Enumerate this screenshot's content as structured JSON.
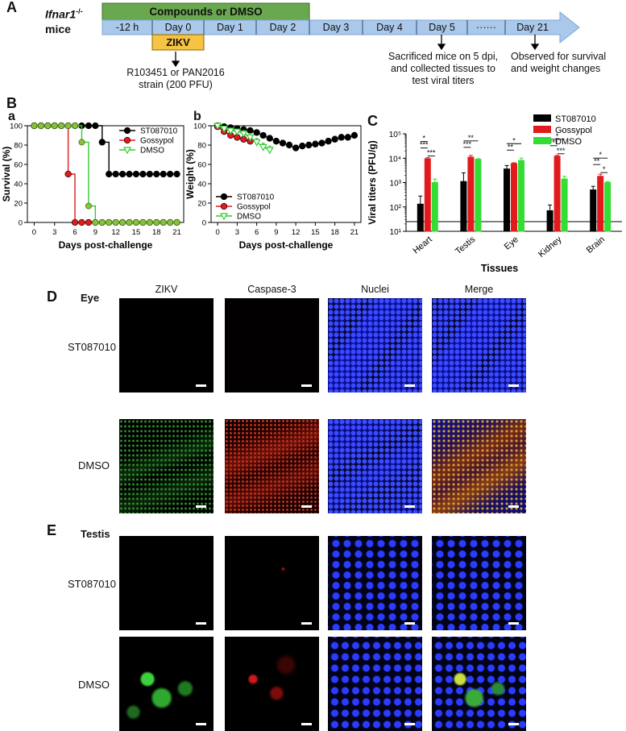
{
  "panelA": {
    "label": "A",
    "mice_title": "Ifnar1",
    "mice_sup": "-/-",
    "mice_word": "mice",
    "bar_compounds": "Compounds or DMSO",
    "bar_zikv": "ZIKV",
    "timeline": [
      "-12 h",
      "Day 0",
      "Day 1",
      "Day 2",
      "Day 3",
      "Day 4",
      "Day 5",
      "······",
      "Day 21"
    ],
    "strain_note_1": "R103451 or PAN2016",
    "strain_note_2": "strain (200 PFU)",
    "sacrifice_note_1": "Sacrificed mice on 5 dpi,",
    "sacrifice_note_2": "and collected tissues to",
    "sacrifice_note_3": "test viral titers",
    "observe_note_1": "Observed for survival",
    "observe_note_2": "and weight changes",
    "colors": {
      "compounds": "#6aa84f",
      "zikv": "#f6c342",
      "timeline": "#a9c8ea",
      "arrow": "#a9c8ea"
    }
  },
  "panelB": {
    "label": "B",
    "sub_a": "a",
    "sub_b": "b"
  },
  "panelC": {
    "label": "C"
  },
  "chart_data": [
    {
      "type": "line",
      "id": "survival",
      "xlabel": "Days post-challenge",
      "ylabel": "Survival (%)",
      "xlim": [
        -1,
        22
      ],
      "ylim": [
        0,
        100
      ],
      "xticks": [
        0,
        3,
        6,
        9,
        12,
        15,
        18,
        21
      ],
      "yticks": [
        0,
        20,
        40,
        60,
        80,
        100
      ],
      "legend_position": "top-right",
      "series": [
        {
          "name": "ST087010",
          "color": "#000000",
          "marker": "circle",
          "x": [
            0,
            1,
            2,
            3,
            4,
            5,
            6,
            7,
            8,
            9,
            10,
            11,
            12,
            13,
            14,
            15,
            16,
            17,
            18,
            19,
            20,
            21
          ],
          "y": [
            100,
            100,
            100,
            100,
            100,
            100,
            100,
            100,
            100,
            100,
            83,
            50,
            50,
            50,
            50,
            50,
            50,
            50,
            50,
            50,
            50,
            50
          ]
        },
        {
          "name": "Gossypol",
          "color": "#e31a1c",
          "marker": "circle",
          "x": [
            0,
            1,
            2,
            3,
            4,
            5,
            6,
            7,
            8,
            9,
            10,
            11,
            12,
            13,
            14,
            15,
            16,
            17,
            18,
            19,
            20,
            21
          ],
          "y": [
            100,
            100,
            100,
            100,
            100,
            50,
            0,
            0,
            0,
            0,
            0,
            0,
            0,
            0,
            0,
            0,
            0,
            0,
            0,
            0,
            0,
            0
          ]
        },
        {
          "name": "DMSO",
          "color": "#33cc33",
          "marker": "triangle-down",
          "x": [
            0,
            1,
            2,
            3,
            4,
            5,
            6,
            7,
            8,
            9,
            10,
            11,
            12,
            13,
            14,
            15,
            16,
            17,
            18,
            19,
            20,
            21
          ],
          "y": [
            100,
            100,
            100,
            100,
            100,
            100,
            100,
            83,
            17,
            0,
            0,
            0,
            0,
            0,
            0,
            0,
            0,
            0,
            0,
            0,
            0,
            0
          ]
        }
      ]
    },
    {
      "type": "line",
      "id": "weight",
      "xlabel": "Days post-challenge",
      "ylabel": "Weight (%)",
      "xlim": [
        -1,
        22
      ],
      "ylim": [
        0,
        100
      ],
      "xticks": [
        0,
        3,
        6,
        9,
        12,
        15,
        18,
        21
      ],
      "yticks": [
        0,
        20,
        40,
        60,
        80,
        100
      ],
      "legend_position": "bottom-left",
      "series": [
        {
          "name": "ST087010",
          "color": "#000000",
          "marker": "circle",
          "x": [
            0,
            1,
            2,
            3,
            4,
            5,
            6,
            7,
            8,
            9,
            10,
            11,
            12,
            13,
            14,
            15,
            16,
            17,
            18,
            19,
            20,
            21
          ],
          "y": [
            100,
            99,
            98,
            97,
            96,
            95,
            93,
            90,
            87,
            84,
            82,
            80,
            77,
            79,
            80,
            81,
            82,
            84,
            86,
            88,
            88,
            90
          ],
          "err": [
            1,
            1,
            1,
            1,
            2,
            2,
            2,
            2,
            3,
            3,
            3,
            3,
            3,
            3,
            3,
            3,
            3,
            3,
            3,
            3,
            3,
            3
          ]
        },
        {
          "name": "Gossypol",
          "color": "#e31a1c",
          "marker": "circle",
          "x": [
            0,
            1,
            2,
            3,
            4,
            5
          ],
          "y": [
            99,
            94,
            90,
            88,
            86,
            84
          ],
          "err": [
            1,
            2,
            2,
            2,
            3,
            3
          ]
        },
        {
          "name": "DMSO",
          "color": "#33cc33",
          "marker": "triangle-down",
          "x": [
            0,
            1,
            2,
            3,
            4,
            5,
            6,
            7,
            8
          ],
          "y": [
            100,
            97,
            95,
            94,
            92,
            88,
            83,
            78,
            75
          ],
          "err": [
            1,
            2,
            2,
            2,
            3,
            4,
            4,
            4,
            4
          ]
        }
      ]
    },
    {
      "type": "bar",
      "id": "titers",
      "xlabel": "Tissues",
      "ylabel": "Viral titers (PFU/g)",
      "scale": "log",
      "ylim": [
        10,
        100000
      ],
      "yticks": [
        10,
        100,
        1000,
        10000,
        100000
      ],
      "ytick_labels": [
        "10¹",
        "10²",
        "10³",
        "10⁴",
        "10⁵"
      ],
      "baseline": 25,
      "legend_position": "top-right",
      "categories": [
        "Heart",
        "Testis",
        "Eye",
        "Kidney",
        "Brain"
      ],
      "series": [
        {
          "name": "ST087010",
          "color": "#000000",
          "values": [
            130,
            1100,
            3600,
            70,
            500
          ],
          "err_hi": [
            280,
            2500,
            5000,
            120,
            700
          ]
        },
        {
          "name": "Gossypol",
          "color": "#e31a1c",
          "values": [
            9500,
            11000,
            6000,
            12000,
            1800
          ],
          "err_hi": [
            10500,
            13000,
            6500,
            13000,
            2200
          ]
        },
        {
          "name": "DMSO",
          "color": "#33dd33",
          "values": [
            1000,
            9000,
            8000,
            1400,
            1000
          ],
          "err_hi": [
            1400,
            9500,
            10000,
            1800,
            1100
          ]
        }
      ],
      "significance": [
        {
          "category": "Heart",
          "pairs": [
            [
              "ST087010",
              "Gossypol",
              "*"
            ],
            [
              "ST087010",
              "Gossypol",
              "***"
            ],
            [
              "Gossypol",
              "DMSO",
              "***"
            ]
          ]
        },
        {
          "category": "Testis",
          "pairs": [
            [
              "ST087010",
              "DMSO",
              "**"
            ],
            [
              "ST087010",
              "Gossypol",
              "***"
            ]
          ]
        },
        {
          "category": "Eye",
          "pairs": [
            [
              "ST087010",
              "DMSO",
              "*"
            ],
            [
              "ST087010",
              "Gossypol",
              "**"
            ]
          ]
        },
        {
          "category": "Kidney",
          "pairs": [
            [
              "ST087010",
              "DMSO",
              "*"
            ],
            [
              "ST087010",
              "Gossypol",
              "***"
            ],
            [
              "Gossypol",
              "DMSO",
              "***"
            ]
          ]
        },
        {
          "category": "Brain",
          "pairs": [
            [
              "ST087010",
              "DMSO",
              "*"
            ],
            [
              "ST087010",
              "Gossypol",
              "**"
            ],
            [
              "Gossypol",
              "DMSO",
              "*"
            ]
          ]
        }
      ]
    }
  ],
  "panelD": {
    "label": "D",
    "tissue": "Eye",
    "columns": [
      "ZIKV",
      "Caspase-3",
      "Nuclei",
      "Merge"
    ],
    "rows": [
      "ST087010",
      "DMSO"
    ]
  },
  "panelE": {
    "label": "E",
    "tissue": "Testis",
    "rows": [
      "ST087010",
      "DMSO"
    ]
  }
}
